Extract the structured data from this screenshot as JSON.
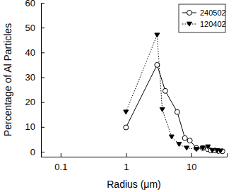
{
  "chart_data": {
    "type": "line",
    "x_label": "Radius (μm)",
    "y_label": "Percentage of Al Particles",
    "log": "x",
    "xlim": [
      0.05,
      35
    ],
    "xticks": [
      0.1,
      1,
      10
    ],
    "ylim": [
      -2,
      60
    ],
    "yticks": [
      0,
      10,
      20,
      30,
      40,
      50,
      60
    ],
    "legend": "upper right",
    "series": [
      {
        "name": "240502",
        "color": "#000000",
        "marker": "circle",
        "line_style": "solid",
        "x": [
          1,
          3,
          4,
          6.1,
          8,
          9.5,
          12,
          15,
          18,
          20,
          23,
          26,
          30
        ],
        "values": [
          9.8,
          35,
          24.5,
          16,
          5.5,
          4.5,
          1.5,
          1.5,
          1,
          0.5,
          0.5,
          0.3,
          0.2
        ]
      },
      {
        "name": "120402",
        "color": "#000000",
        "marker": "triangle-down",
        "line_style": "dotted",
        "x": [
          1,
          3,
          3.6,
          5,
          6.5,
          8.5,
          12,
          15,
          18,
          21,
          25,
          28
        ],
        "values": [
          16,
          47,
          17,
          6,
          3,
          1.5,
          1,
          1.5,
          2,
          0.5,
          0.5,
          0.3
        ]
      }
    ]
  }
}
